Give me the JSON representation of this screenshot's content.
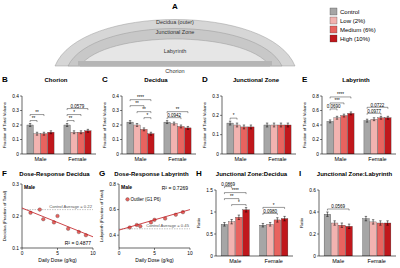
{
  "diagram": {
    "panel": "A",
    "labels": [
      "Decidua (outer)",
      "Junctional Zone",
      "Labyrinth",
      "Chorion"
    ]
  },
  "chart_data": [
    {
      "type": "bar",
      "panel": "B",
      "title": "Chorion",
      "y_label": "Fraction of Total Volume",
      "categories": [
        "Male",
        "Female"
      ],
      "legend": "top-right",
      "series": [
        {
          "name": "Control",
          "color": "#a6a6a6",
          "values": [
            0.2,
            0.2
          ],
          "errors": [
            0.01,
            0.01
          ]
        },
        {
          "name": "Low (2%)",
          "color": "#f2b3b0",
          "values": [
            0.14,
            0.15
          ],
          "errors": [
            0.01,
            0.01
          ]
        },
        {
          "name": "Medium (6%)",
          "color": "#e8635f",
          "values": [
            0.14,
            0.15
          ],
          "errors": [
            0.01,
            0.01
          ]
        },
        {
          "name": "High (10%)",
          "color": "#c0171c",
          "values": [
            0.15,
            0.16
          ],
          "errors": [
            0.01,
            0.01
          ]
        }
      ],
      "ylim": [
        0,
        0.4
      ],
      "yticks": [
        0,
        0.1,
        0.2,
        0.3,
        0.4
      ],
      "annotations": [
        {
          "text": "**",
          "category": 0,
          "from": 0,
          "to": 1
        },
        {
          "text": "**",
          "category": 0,
          "from": 0,
          "to": 2
        },
        {
          "text": "**",
          "category": 1,
          "from": 0,
          "to": 1
        },
        {
          "text": "*",
          "category": 1,
          "from": 0,
          "to": 2
        },
        {
          "text": "0.0579",
          "category": 1,
          "from": 0,
          "to": 3
        }
      ]
    },
    {
      "type": "bar",
      "panel": "C",
      "title": "Decidua",
      "y_label": "Fraction of Total Volume",
      "categories": [
        "Male",
        "Female"
      ],
      "series": [
        {
          "color": "#a6a6a6",
          "values": [
            0.22,
            0.22
          ],
          "errors": [
            0.01,
            0.01
          ]
        },
        {
          "color": "#f2b3b0",
          "values": [
            0.2,
            0.21
          ],
          "errors": [
            0.01,
            0.01
          ]
        },
        {
          "color": "#e8635f",
          "values": [
            0.17,
            0.19
          ],
          "errors": [
            0.01,
            0.01
          ]
        },
        {
          "color": "#c0171c",
          "values": [
            0.14,
            0.18
          ],
          "errors": [
            0.01,
            0.01
          ]
        }
      ],
      "ylim": [
        0,
        0.4
      ],
      "yticks": [
        0,
        0.1,
        0.2,
        0.3,
        0.4
      ],
      "annotations": [
        {
          "text": "*",
          "category": 0,
          "from": 2,
          "to": 3
        },
        {
          "text": "**",
          "category": 0,
          "from": 1,
          "to": 3
        },
        {
          "text": "**",
          "category": 0,
          "from": 0,
          "to": 2
        },
        {
          "text": "****",
          "category": 0,
          "from": 0,
          "to": 3
        },
        {
          "text": "0.0942",
          "category": 1,
          "from": 0,
          "to": 2
        },
        {
          "text": "**",
          "category": 1,
          "from": 0,
          "to": 3
        }
      ]
    },
    {
      "type": "bar",
      "panel": "D",
      "title": "Junctional Zone",
      "y_label": "Fraction of Total Volume",
      "categories": [
        "Male",
        "Female"
      ],
      "series": [
        {
          "color": "#a6a6a6",
          "values": [
            0.16,
            0.15
          ],
          "errors": [
            0.01,
            0.01
          ]
        },
        {
          "color": "#f2b3b0",
          "values": [
            0.15,
            0.15
          ],
          "errors": [
            0.01,
            0.01
          ]
        },
        {
          "color": "#e8635f",
          "values": [
            0.14,
            0.15
          ],
          "errors": [
            0.01,
            0.01
          ]
        },
        {
          "color": "#c0171c",
          "values": [
            0.14,
            0.15
          ],
          "errors": [
            0.01,
            0.01
          ]
        }
      ],
      "ylim": [
        0,
        0.3
      ],
      "yticks": [
        0,
        0.1,
        0.2,
        0.3
      ],
      "annotations": [
        {
          "text": "*",
          "category": 0,
          "from": 0,
          "to": 1
        }
      ]
    },
    {
      "type": "bar",
      "panel": "E",
      "title": "Labyrinth",
      "y_label": "Fraction of Total Volume",
      "categories": [
        "Male",
        "Female"
      ],
      "series": [
        {
          "color": "#a6a6a6",
          "values": [
            0.45,
            0.46
          ],
          "errors": [
            0.02,
            0.02
          ]
        },
        {
          "color": "#f2b3b0",
          "values": [
            0.5,
            0.48
          ],
          "errors": [
            0.02,
            0.02
          ]
        },
        {
          "color": "#e8635f",
          "values": [
            0.53,
            0.5
          ],
          "errors": [
            0.02,
            0.02
          ]
        },
        {
          "color": "#c0171c",
          "values": [
            0.56,
            0.5
          ],
          "errors": [
            0.02,
            0.02
          ]
        }
      ],
      "ylim": [
        0,
        0.8
      ],
      "yticks": [
        0,
        0.2,
        0.4,
        0.6,
        0.8
      ],
      "annotations": [
        {
          "text": "0.0690",
          "category": 0,
          "from": 0,
          "to": 1
        },
        {
          "text": "***",
          "category": 0,
          "from": 0,
          "to": 2
        },
        {
          "text": "****",
          "category": 0,
          "from": 0,
          "to": 3
        },
        {
          "text": "0.0977",
          "category": 1,
          "from": 0,
          "to": 2
        },
        {
          "text": "0.0722",
          "category": 1,
          "from": 0,
          "to": 3
        }
      ]
    },
    {
      "type": "scatter",
      "panel": "F",
      "title": "Dose-Response Decidua",
      "subtitle": "Male",
      "x_label": "Daily Dose (g/kg)",
      "y_label": "Decidua (Fraction of Total)",
      "series": [
        {
          "type": "scatter",
          "color": "#e8635f",
          "x": [
            1.2,
            2.5,
            3,
            4.5,
            5,
            6.5,
            8,
            9
          ],
          "values": [
            0.21,
            0.22,
            0.19,
            0.18,
            0.2,
            0.16,
            0.15,
            0.14
          ]
        },
        {
          "type": "line",
          "color": "#c0171c",
          "x": [
            0,
            10
          ],
          "values": [
            0.225,
            0.135
          ]
        }
      ],
      "reference": {
        "value": 0.22,
        "label": "Control Average = 0.22"
      },
      "annotation": "R² = 0.4877",
      "xlim": [
        0,
        10
      ],
      "xticks": [
        0,
        5,
        10
      ],
      "ylim": [
        0.1,
        0.3
      ],
      "yticks": [
        0.1,
        0.2,
        0.3
      ]
    },
    {
      "type": "scatter",
      "panel": "G",
      "title": "Dose-Response Labyrinth",
      "subtitle": "Male",
      "x_label": "Daily Dose (g/kg)",
      "y_label": "Labyrinth (Fraction of Total)",
      "series": [
        {
          "type": "scatter",
          "color": "#e8635f",
          "x": [
            1.2,
            1.5,
            2.5,
            3,
            4.5,
            5,
            6.5,
            8,
            9
          ],
          "values": [
            0.68,
            0.46,
            0.48,
            0.47,
            0.5,
            0.52,
            0.53,
            0.56,
            0.58
          ]
        },
        {
          "type": "line",
          "color": "#c0171c",
          "x": [
            0,
            10
          ],
          "values": [
            0.44,
            0.6
          ]
        }
      ],
      "reference": {
        "value": 0.45,
        "label": "Control Average = 0.45"
      },
      "annotation": "R² = 0.7269",
      "point_label": {
        "text": "Outlier (G1 P6)",
        "point": 0
      },
      "xlim": [
        0,
        10
      ],
      "xticks": [
        0,
        5,
        10
      ],
      "ylim": [
        0.3,
        0.8
      ],
      "yticks": [
        0.4,
        0.6,
        0.8
      ]
    },
    {
      "type": "bar",
      "panel": "H",
      "title": "Junctional Zone:Decidua",
      "y_label": "Ratio",
      "categories": [
        "Male",
        "Female"
      ],
      "series": [
        {
          "color": "#a6a6a6",
          "values": [
            0.72,
            0.7
          ],
          "errors": [
            0.04,
            0.04
          ]
        },
        {
          "color": "#f2b3b0",
          "values": [
            0.78,
            0.72
          ],
          "errors": [
            0.05,
            0.04
          ]
        },
        {
          "color": "#e8635f",
          "values": [
            0.88,
            0.82
          ],
          "errors": [
            0.05,
            0.05
          ]
        },
        {
          "color": "#c0171c",
          "values": [
            1.05,
            0.85
          ],
          "errors": [
            0.05,
            0.05
          ]
        }
      ],
      "ylim": [
        0,
        1.5
      ],
      "yticks": [
        0,
        0.5,
        1,
        1.5
      ],
      "annotations": [
        {
          "text": "*",
          "category": 0,
          "from": 1,
          "to": 3
        },
        {
          "text": "**",
          "category": 0,
          "from": 0,
          "to": 2
        },
        {
          "text": "****",
          "category": 0,
          "from": 0,
          "to": 3
        },
        {
          "text": "0.0869",
          "category": 0,
          "from": 0,
          "to": 1
        },
        {
          "text": "0.0980",
          "category": 1,
          "from": 0,
          "to": 2
        },
        {
          "text": "*",
          "category": 1,
          "from": 0,
          "to": 3
        }
      ]
    },
    {
      "type": "bar",
      "panel": "I",
      "title": "Junctional Zone:Labyrinth",
      "y_label": "Ratio",
      "categories": [
        "Male",
        "Female"
      ],
      "series": [
        {
          "color": "#a6a6a6",
          "values": [
            0.38,
            0.34
          ],
          "errors": [
            0.02,
            0.02
          ]
        },
        {
          "color": "#f2b3b0",
          "values": [
            0.3,
            0.31
          ],
          "errors": [
            0.02,
            0.02
          ]
        },
        {
          "color": "#e8635f",
          "values": [
            0.28,
            0.3
          ],
          "errors": [
            0.02,
            0.02
          ]
        },
        {
          "color": "#c0171c",
          "values": [
            0.27,
            0.3
          ],
          "errors": [
            0.02,
            0.02
          ]
        }
      ],
      "ylim": [
        0,
        0.6
      ],
      "yticks": [
        0,
        0.2,
        0.4,
        0.6
      ],
      "annotations": [
        {
          "text": "0.0569",
          "category": 0,
          "from": 0,
          "to": 3
        }
      ]
    }
  ]
}
